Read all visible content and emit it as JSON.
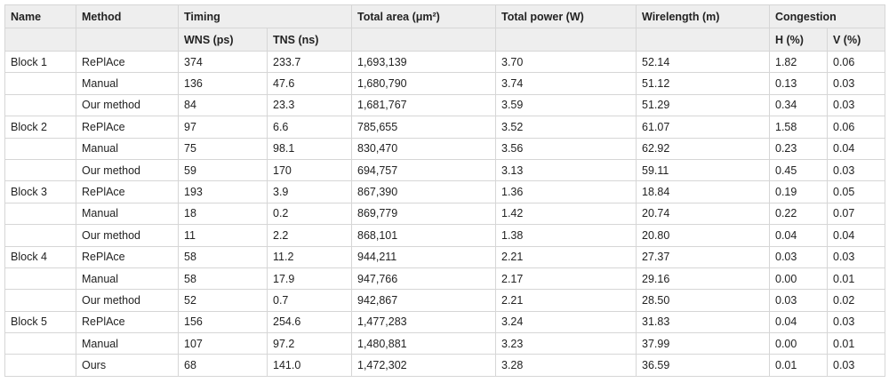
{
  "table": {
    "header": {
      "name": "Name",
      "method": "Method",
      "timing": "Timing",
      "area": "Total area (μm²)",
      "power": "Total power (W)",
      "wirelength": "Wirelength (m)",
      "congestion": "Congestion",
      "wns": "WNS (ps)",
      "tns": "TNS (ns)",
      "h": "H (%)",
      "v": "V (%)"
    },
    "blocks": [
      {
        "name": "Block 1",
        "rows": [
          [
            "RePlAce",
            "374",
            "233.7",
            "1,693,139",
            "3.70",
            "52.14",
            "1.82",
            "0.06"
          ],
          [
            "Manual",
            "136",
            "47.6",
            "1,680,790",
            "3.74",
            "51.12",
            "0.13",
            "0.03"
          ],
          [
            "Our method",
            "84",
            "23.3",
            "1,681,767",
            "3.59",
            "51.29",
            "0.34",
            "0.03"
          ]
        ]
      },
      {
        "name": "Block 2",
        "rows": [
          [
            "RePlAce",
            "97",
            "6.6",
            "785,655",
            "3.52",
            "61.07",
            "1.58",
            "0.06"
          ],
          [
            "Manual",
            "75",
            "98.1",
            "830,470",
            "3.56",
            "62.92",
            "0.23",
            "0.04"
          ],
          [
            "Our method",
            "59",
            "170",
            "694,757",
            "3.13",
            "59.11",
            "0.45",
            "0.03"
          ]
        ]
      },
      {
        "name": "Block 3",
        "rows": [
          [
            "RePlAce",
            "193",
            "3.9",
            "867,390",
            "1.36",
            "18.84",
            "0.19",
            "0.05"
          ],
          [
            "Manual",
            "18",
            "0.2",
            "869,779",
            "1.42",
            "20.74",
            "0.22",
            "0.07"
          ],
          [
            "Our method",
            "11",
            "2.2",
            "868,101",
            "1.38",
            "20.80",
            "0.04",
            "0.04"
          ]
        ]
      },
      {
        "name": "Block 4",
        "rows": [
          [
            "RePlAce",
            "58",
            "11.2",
            "944,211",
            "2.21",
            "27.37",
            "0.03",
            "0.03"
          ],
          [
            "Manual",
            "58",
            "17.9",
            "947,766",
            "2.17",
            "29.16",
            "0.00",
            "0.01"
          ],
          [
            "Our method",
            "52",
            "0.7",
            "942,867",
            "2.21",
            "28.50",
            "0.03",
            "0.02"
          ]
        ]
      },
      {
        "name": "Block 5",
        "rows": [
          [
            "RePlAce",
            "156",
            "254.6",
            "1,477,283",
            "3.24",
            "31.83",
            "0.04",
            "0.03"
          ],
          [
            "Manual",
            "107",
            "97.2",
            "1,480,881",
            "3.23",
            "37.99",
            "0.00",
            "0.01"
          ],
          [
            "Ours",
            "68",
            "141.0",
            "1,472,302",
            "3.28",
            "36.59",
            "0.01",
            "0.03"
          ]
        ]
      }
    ]
  }
}
